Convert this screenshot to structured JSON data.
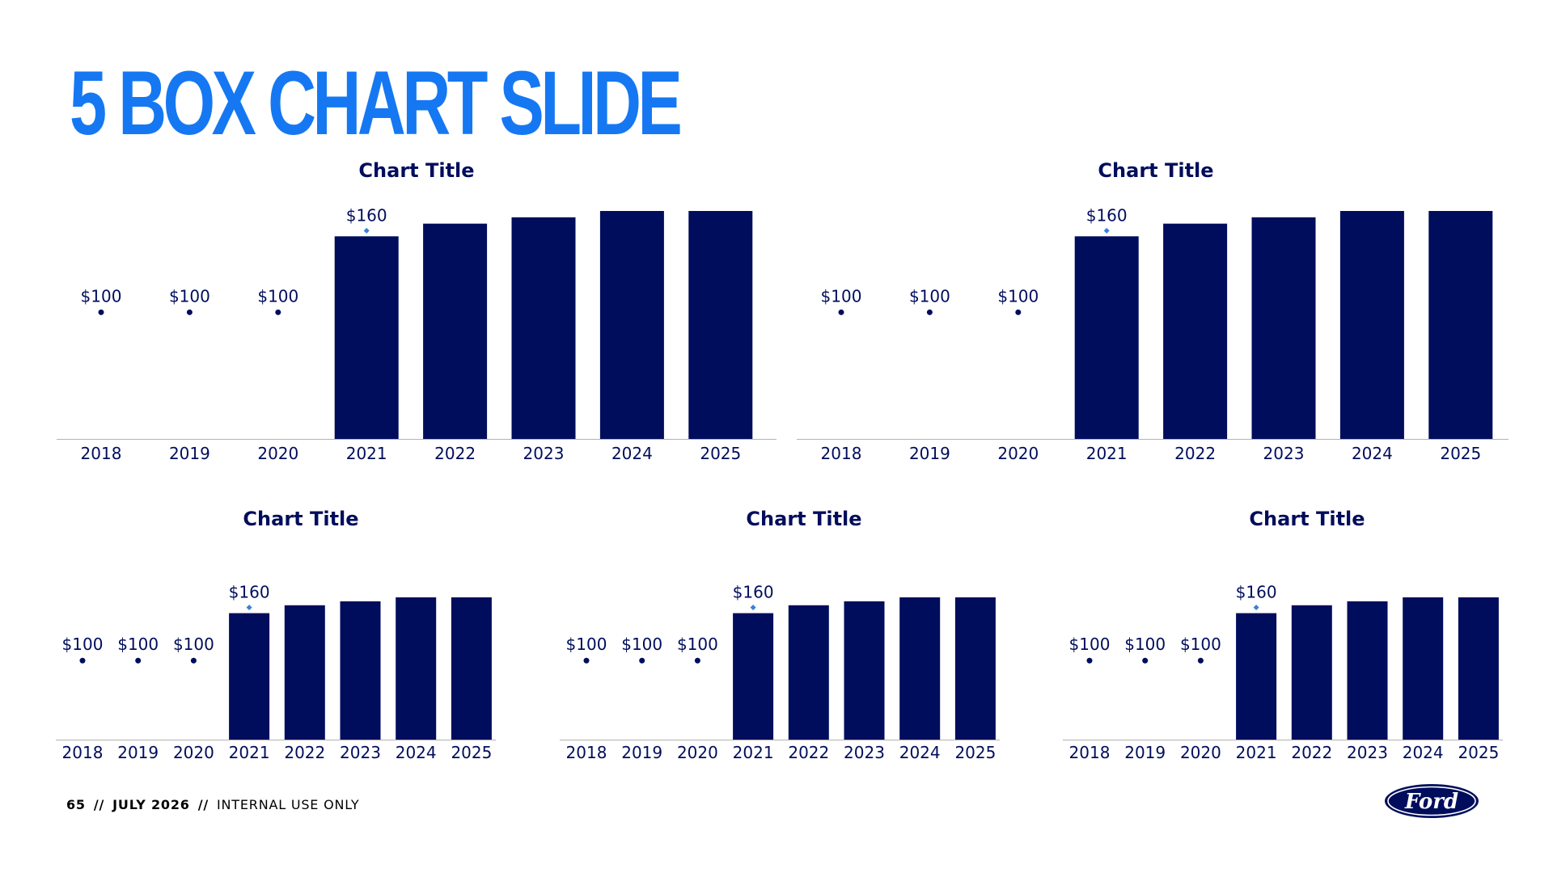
{
  "slide": {
    "title": "5 BOX CHART SLIDE",
    "footer": {
      "page_number": "65",
      "separator": "//",
      "date": "JULY 2026",
      "classification": "INTERNAL USE ONLY"
    },
    "logo_text": "Ford"
  },
  "colors": {
    "title_blue": "#1578f2",
    "bar_navy": "#000d5c",
    "marker_light_blue": "#3b82d6",
    "axis_gray": "#b3b3b3"
  },
  "chart_data": [
    {
      "type": "bar",
      "title": "Chart Title",
      "categories": [
        "2018",
        "2019",
        "2020",
        "2021",
        "2022",
        "2023",
        "2024",
        "2025"
      ],
      "values": [
        100,
        100,
        100,
        160,
        170,
        175,
        180,
        180
      ],
      "data_labels": [
        "$100",
        "$100",
        "$100",
        "$160",
        "",
        "",
        "",
        ""
      ],
      "markers": [
        "dot",
        "dot",
        "dot",
        "diamond",
        "",
        "",
        "",
        ""
      ],
      "ylim": [
        0,
        180
      ],
      "grid": false,
      "legend": "none"
    },
    {
      "type": "bar",
      "title": "Chart Title",
      "categories": [
        "2018",
        "2019",
        "2020",
        "2021",
        "2022",
        "2023",
        "2024",
        "2025"
      ],
      "values": [
        100,
        100,
        100,
        160,
        170,
        175,
        180,
        180
      ],
      "data_labels": [
        "$100",
        "$100",
        "$100",
        "$160",
        "",
        "",
        "",
        ""
      ],
      "markers": [
        "dot",
        "dot",
        "dot",
        "diamond",
        "",
        "",
        "",
        ""
      ],
      "ylim": [
        0,
        180
      ],
      "grid": false,
      "legend": "none"
    },
    {
      "type": "bar",
      "title": "Chart Title",
      "categories": [
        "2018",
        "2019",
        "2020",
        "2021",
        "2022",
        "2023",
        "2024",
        "2025"
      ],
      "values": [
        100,
        100,
        100,
        160,
        170,
        175,
        180,
        180
      ],
      "data_labels": [
        "$100",
        "$100",
        "$100",
        "$160",
        "",
        "",
        "",
        ""
      ],
      "markers": [
        "dot",
        "dot",
        "dot",
        "diamond",
        "",
        "",
        "",
        ""
      ],
      "ylim": [
        0,
        180
      ],
      "grid": false,
      "legend": "none"
    },
    {
      "type": "bar",
      "title": "Chart Title",
      "categories": [
        "2018",
        "2019",
        "2020",
        "2021",
        "2022",
        "2023",
        "2024",
        "2025"
      ],
      "values": [
        100,
        100,
        100,
        160,
        170,
        175,
        180,
        180
      ],
      "data_labels": [
        "$100",
        "$100",
        "$100",
        "$160",
        "",
        "",
        "",
        ""
      ],
      "markers": [
        "dot",
        "dot",
        "dot",
        "diamond",
        "",
        "",
        "",
        ""
      ],
      "ylim": [
        0,
        180
      ],
      "grid": false,
      "legend": "none"
    },
    {
      "type": "bar",
      "title": "Chart Title",
      "categories": [
        "2018",
        "2019",
        "2020",
        "2021",
        "2022",
        "2023",
        "2024",
        "2025"
      ],
      "values": [
        100,
        100,
        100,
        160,
        170,
        175,
        180,
        180
      ],
      "data_labels": [
        "$100",
        "$100",
        "$100",
        "$160",
        "",
        "",
        "",
        ""
      ],
      "markers": [
        "dot",
        "dot",
        "dot",
        "diamond",
        "",
        "",
        "",
        ""
      ],
      "ylim": [
        0,
        180
      ],
      "grid": false,
      "legend": "none"
    }
  ]
}
